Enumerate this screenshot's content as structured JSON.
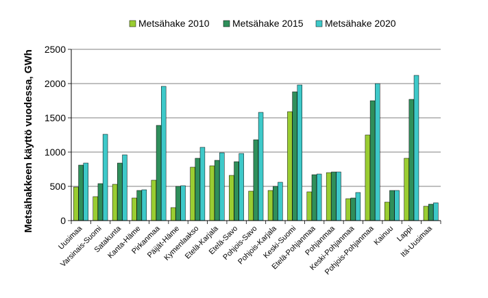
{
  "chart_data": {
    "type": "bar",
    "title": "",
    "xlabel": "",
    "ylabel": "Metsähakkeen käyttö vuodessa, GWh",
    "ylim": [
      0,
      2500
    ],
    "yticks": [
      0,
      500,
      1000,
      1500,
      2000,
      2500
    ],
    "grid": true,
    "legend_position": "top",
    "categories": [
      "Uusimaa",
      "Varsinais-Suomi",
      "Satakunta",
      "Kanta-Häme",
      "Pirkanmaa",
      "Päijät-Häme",
      "Kymenlaakso",
      "Etelä-Karjala",
      "Etelä-Savo",
      "Pohjois-Savo",
      "Pohjois-Karjala",
      "Keski-Suomi",
      "Etelä-Pohjanmaa",
      "Pohjanmaa",
      "Keski-Pohjanmaa",
      "Pohjois-Pohjanmaa",
      "Kainuu",
      "Lappi",
      "Itä-Uusimaa"
    ],
    "series": [
      {
        "name": "Metsähake 2010",
        "color": "#9acd32",
        "values": [
          490,
          350,
          530,
          330,
          590,
          190,
          780,
          800,
          660,
          430,
          440,
          1590,
          420,
          700,
          320,
          1250,
          270,
          910,
          210
        ]
      },
      {
        "name": "Metsähake 2015",
        "color": "#2f8f5b",
        "values": [
          810,
          540,
          840,
          440,
          1390,
          500,
          910,
          880,
          860,
          1180,
          500,
          1880,
          670,
          710,
          330,
          1750,
          440,
          1770,
          240
        ]
      },
      {
        "name": "Metsähake 2020",
        "color": "#3ec9c9",
        "values": [
          840,
          1260,
          960,
          450,
          1960,
          510,
          1070,
          990,
          980,
          1580,
          560,
          1980,
          680,
          710,
          410,
          2000,
          440,
          2120,
          260
        ]
      }
    ]
  }
}
